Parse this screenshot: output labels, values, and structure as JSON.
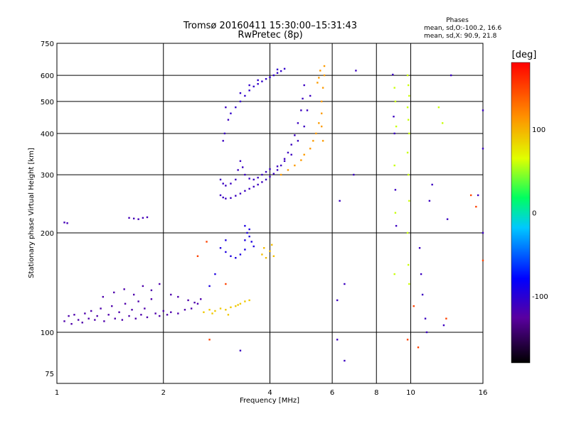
{
  "chart_data": {
    "type": "scatter",
    "title": "Tromsø 20160411 15:30:00–15:31:43",
    "subtitle": "RwPretec (8p)",
    "xlabel": "Frequency [MHz]",
    "ylabel": "Stationary phase Virtual Height [km]",
    "x_scale": "log",
    "y_scale": "log",
    "xlim": [
      1,
      16
    ],
    "ylim": [
      70,
      750
    ],
    "x_ticks": [
      1,
      2,
      4,
      6,
      8,
      10,
      16
    ],
    "x_tick_labels": [
      "1",
      "2",
      "4",
      "6",
      "8",
      "10",
      "16"
    ],
    "y_ticks": [
      75,
      100,
      200,
      300,
      400,
      500,
      600,
      750
    ],
    "y_tick_labels": [
      "75",
      "100",
      "200",
      "300",
      "400",
      "500",
      "600",
      "750"
    ],
    "grid": true,
    "stats": {
      "heading": "Phases",
      "line_o": "mean, sd,O:-100.2, 16.6",
      "line_x": "mean, sd,X:  90.9, 21.8"
    },
    "colorbar": {
      "label": "[deg]",
      "range": [
        -180,
        180
      ],
      "ticks": [
        100,
        0,
        -100
      ],
      "tick_labels": [
        "100",
        "0",
        "-100"
      ]
    },
    "series": [
      {
        "values": [
          [
            1.05,
            108
          ],
          [
            1.08,
            112
          ],
          [
            1.1,
            106
          ],
          [
            1.12,
            113
          ],
          [
            1.15,
            109
          ],
          [
            1.18,
            107
          ],
          [
            1.2,
            114
          ],
          [
            1.23,
            110
          ],
          [
            1.25,
            116
          ],
          [
            1.28,
            109
          ],
          [
            1.3,
            112
          ],
          [
            1.33,
            118
          ],
          [
            1.36,
            108
          ],
          [
            1.4,
            113
          ],
          [
            1.43,
            120
          ],
          [
            1.46,
            110
          ],
          [
            1.5,
            115
          ],
          [
            1.53,
            109
          ],
          [
            1.56,
            122
          ],
          [
            1.6,
            112
          ],
          [
            1.63,
            117
          ],
          [
            1.67,
            110
          ],
          [
            1.7,
            124
          ],
          [
            1.73,
            113
          ],
          [
            1.77,
            118
          ],
          [
            1.8,
            111
          ],
          [
            1.85,
            126
          ],
          [
            1.9,
            114
          ],
          [
            1.95,
            112
          ],
          [
            2.0,
            116
          ],
          [
            2.05,
            113
          ],
          [
            2.1,
            115
          ],
          [
            2.2,
            114
          ],
          [
            2.3,
            117
          ],
          [
            2.4,
            118
          ],
          [
            2.5,
            122
          ],
          [
            2.55,
            126
          ],
          [
            1.35,
            128
          ],
          [
            1.45,
            132
          ],
          [
            1.55,
            135
          ],
          [
            1.65,
            130
          ],
          [
            1.75,
            138
          ],
          [
            1.85,
            134
          ],
          [
            1.95,
            140
          ],
          [
            2.1,
            130
          ],
          [
            2.2,
            128
          ],
          [
            2.35,
            125
          ],
          [
            2.45,
            123
          ]
        ],
        "phase": -120
      },
      {
        "values": [
          [
            1.6,
            222
          ],
          [
            1.65,
            221
          ],
          [
            1.7,
            220
          ],
          [
            1.75,
            222
          ],
          [
            1.8,
            223
          ],
          [
            1.05,
            215
          ],
          [
            1.07,
            214
          ]
        ],
        "phase": -115
      },
      {
        "values": [
          [
            2.9,
            260
          ],
          [
            2.95,
            256
          ],
          [
            3.0,
            254
          ],
          [
            3.1,
            255
          ],
          [
            3.2,
            259
          ],
          [
            3.3,
            263
          ],
          [
            3.4,
            268
          ],
          [
            3.5,
            272
          ],
          [
            3.6,
            276
          ],
          [
            3.7,
            280
          ],
          [
            3.8,
            285
          ],
          [
            3.9,
            290
          ],
          [
            4.0,
            296
          ],
          [
            4.1,
            302
          ],
          [
            4.2,
            310
          ],
          [
            4.3,
            320
          ],
          [
            4.4,
            335
          ],
          [
            4.5,
            350
          ],
          [
            4.6,
            370
          ],
          [
            4.7,
            395
          ],
          [
            4.8,
            430
          ],
          [
            4.9,
            470
          ],
          [
            4.95,
            510
          ],
          [
            5.0,
            560
          ],
          [
            2.9,
            290
          ],
          [
            2.95,
            282
          ],
          [
            3.0,
            278
          ],
          [
            3.1,
            282
          ],
          [
            3.2,
            290
          ],
          [
            3.25,
            310
          ],
          [
            3.3,
            330
          ],
          [
            3.35,
            316
          ],
          [
            3.4,
            300
          ],
          [
            3.5,
            292
          ],
          [
            3.6,
            290
          ],
          [
            3.7,
            294
          ],
          [
            3.8,
            300
          ],
          [
            3.9,
            306
          ],
          [
            4.0,
            312
          ],
          [
            4.2,
            318
          ],
          [
            4.4,
            330
          ],
          [
            4.6,
            345
          ],
          [
            4.8,
            380
          ],
          [
            5.0,
            420
          ],
          [
            5.1,
            470
          ],
          [
            5.2,
            520
          ],
          [
            3.0,
            480
          ],
          [
            3.05,
            440
          ],
          [
            2.95,
            380
          ],
          [
            2.98,
            400
          ]
        ],
        "phase": -110
      },
      {
        "values": [
          [
            3.1,
            460
          ],
          [
            3.2,
            480
          ],
          [
            3.3,
            500
          ],
          [
            3.4,
            520
          ],
          [
            3.5,
            540
          ],
          [
            3.6,
            555
          ],
          [
            3.7,
            565
          ],
          [
            3.8,
            575
          ],
          [
            3.9,
            585
          ],
          [
            4.0,
            592
          ],
          [
            4.1,
            600
          ],
          [
            4.2,
            610
          ],
          [
            4.3,
            618
          ],
          [
            4.4,
            628
          ],
          [
            3.3,
            530
          ],
          [
            3.5,
            560
          ],
          [
            3.7,
            580
          ],
          [
            4.2,
            625
          ]
        ],
        "phase": -105
      },
      {
        "values": [
          [
            3.4,
            210
          ],
          [
            3.45,
            200
          ],
          [
            3.5,
            195
          ],
          [
            3.55,
            188
          ],
          [
            3.6,
            182
          ],
          [
            3.5,
            205
          ],
          [
            3.4,
            190
          ],
          [
            3.0,
            175
          ],
          [
            3.1,
            170
          ],
          [
            3.2,
            168
          ],
          [
            3.3,
            172
          ],
          [
            3.4,
            178
          ],
          [
            2.9,
            180
          ],
          [
            3.0,
            190
          ],
          [
            2.8,
            150
          ],
          [
            2.7,
            138
          ]
        ],
        "phase": -95
      },
      {
        "values": [
          [
            2.6,
            115
          ],
          [
            2.7,
            117
          ],
          [
            2.8,
            116
          ],
          [
            2.9,
            118
          ],
          [
            3.0,
            117
          ],
          [
            3.1,
            119
          ],
          [
            3.2,
            120
          ],
          [
            3.3,
            122
          ],
          [
            3.4,
            124
          ],
          [
            3.5,
            125
          ],
          [
            2.75,
            114
          ],
          [
            3.05,
            113
          ],
          [
            3.25,
            121
          ]
        ],
        "phase": 90
      },
      {
        "values": [
          [
            3.8,
            172
          ],
          [
            3.9,
            168
          ],
          [
            4.0,
            176
          ],
          [
            4.1,
            170
          ],
          [
            3.85,
            180
          ],
          [
            4.05,
            184
          ]
        ],
        "phase": 95
      },
      {
        "values": [
          [
            4.3,
            300
          ],
          [
            4.5,
            310
          ],
          [
            4.7,
            320
          ],
          [
            4.9,
            332
          ],
          [
            5.0,
            345
          ],
          [
            5.2,
            360
          ],
          [
            5.3,
            380
          ],
          [
            5.4,
            400
          ],
          [
            5.5,
            430
          ],
          [
            5.6,
            460
          ],
          [
            5.6,
            500
          ],
          [
            5.65,
            550
          ],
          [
            5.7,
            600
          ],
          [
            5.7,
            640
          ],
          [
            5.5,
            590
          ],
          [
            5.55,
            620
          ],
          [
            5.45,
            570
          ],
          [
            5.6,
            420
          ],
          [
            5.65,
            380
          ]
        ],
        "phase": 110
      },
      {
        "values": [
          [
            9.8,
            600
          ],
          [
            9.85,
            560
          ],
          [
            9.9,
            520
          ],
          [
            9.8,
            480
          ],
          [
            9.85,
            440
          ],
          [
            9.9,
            400
          ],
          [
            9.8,
            350
          ],
          [
            9.85,
            300
          ],
          [
            9.9,
            250
          ],
          [
            9.8,
            200
          ],
          [
            9.85,
            160
          ],
          [
            9.9,
            140
          ],
          [
            9.0,
            550
          ],
          [
            9.05,
            500
          ],
          [
            9.1,
            420
          ],
          [
            9.0,
            320
          ],
          [
            9.05,
            230
          ],
          [
            9.0,
            150
          ],
          [
            12.0,
            480
          ],
          [
            12.3,
            430
          ]
        ],
        "phase": 60
      },
      {
        "values": [
          [
            8.9,
            603
          ],
          [
            8.95,
            450
          ],
          [
            9.0,
            400
          ],
          [
            9.05,
            270
          ],
          [
            9.1,
            210
          ],
          [
            10.6,
            180
          ],
          [
            10.7,
            150
          ],
          [
            10.8,
            130
          ],
          [
            11.0,
            110
          ],
          [
            11.1,
            100
          ],
          [
            11.3,
            250
          ],
          [
            11.5,
            280
          ],
          [
            12.4,
            105
          ],
          [
            13.0,
            600
          ],
          [
            12.7,
            220
          ],
          [
            15.5,
            260
          ],
          [
            16.0,
            360
          ],
          [
            16.0,
            200
          ],
          [
            16.0,
            470
          ],
          [
            6.3,
            250
          ],
          [
            6.5,
            140
          ],
          [
            7.0,
            620
          ],
          [
            6.9,
            300
          ],
          [
            6.2,
            95
          ],
          [
            6.5,
            82
          ],
          [
            3.3,
            88
          ],
          [
            6.2,
            125
          ]
        ],
        "phase": -110
      },
      {
        "values": [
          [
            2.5,
            170
          ],
          [
            2.65,
            188
          ],
          [
            3.0,
            140
          ],
          [
            2.7,
            95
          ],
          [
            9.8,
            95
          ],
          [
            10.2,
            120
          ],
          [
            10.5,
            90
          ],
          [
            14.8,
            260
          ],
          [
            15.3,
            240
          ],
          [
            16.0,
            165
          ],
          [
            12.6,
            110
          ]
        ],
        "phase": 150
      }
    ]
  }
}
